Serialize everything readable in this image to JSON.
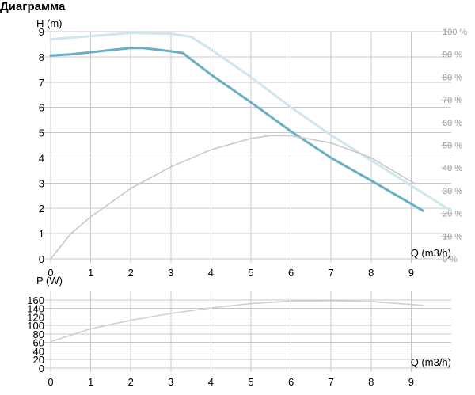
{
  "title": "Диаграмма",
  "colors": {
    "grid": "#c8c8c8",
    "head_curve": "#6aaec6",
    "head_curve_faded": "#cfe6ef",
    "efficiency_curve": "#c8c8c8",
    "power_curve": "#d0d0d0",
    "right_axis_text": "#9a9a9a"
  },
  "chart_data": [
    {
      "type": "line",
      "ylabel": "H (m)",
      "xlabel": "Q (m3/h)",
      "xlim": [
        0,
        10
      ],
      "ylim": [
        0,
        9
      ],
      "x_ticks": [
        0,
        1,
        2,
        3,
        4,
        5,
        6,
        7,
        8,
        9
      ],
      "y_ticks": [
        0,
        1,
        2,
        3,
        4,
        5,
        6,
        7,
        8,
        9
      ],
      "y2lim": [
        0,
        100
      ],
      "y2_ticks": [
        "0 %",
        "10 %",
        "20 %",
        "30 %",
        "40 %",
        "50 %",
        "60 %",
        "70 %",
        "80 %",
        "90 %",
        "100 %"
      ],
      "grid": true,
      "series": [
        {
          "key": "head",
          "axis": "left",
          "color": "#6aaec6",
          "x": [
            0,
            0.5,
            1,
            1.5,
            2,
            2.3,
            2.7,
            3,
            3.3,
            4,
            5,
            6,
            7,
            8,
            9.3
          ],
          "y": [
            8.05,
            8.1,
            8.18,
            8.27,
            8.35,
            8.35,
            8.28,
            8.22,
            8.15,
            7.3,
            6.2,
            5.05,
            4.0,
            3.1,
            1.9
          ]
        },
        {
          "key": "head_max",
          "axis": "left",
          "color": "#cfe6ef",
          "x": [
            0,
            1,
            2,
            3,
            3.5,
            4,
            5,
            6,
            7,
            8,
            9,
            10
          ],
          "y": [
            8.7,
            8.82,
            8.95,
            8.92,
            8.8,
            8.3,
            7.2,
            6.0,
            4.9,
            3.9,
            2.9,
            1.9
          ]
        },
        {
          "key": "efficiency",
          "axis": "right",
          "color": "#c8c8c8",
          "x": [
            0,
            0.5,
            1,
            2,
            3,
            4,
            5,
            5.5,
            6,
            7,
            8,
            9.1
          ],
          "y": [
            0,
            11,
            18.5,
            31,
            40.5,
            48,
            53,
            54.3,
            54.2,
            51,
            44.5,
            33
          ]
        }
      ]
    },
    {
      "type": "line",
      "ylabel": "P (W)",
      "xlabel": "Q (m3/h)",
      "xlim": [
        0,
        10
      ],
      "ylim": [
        0,
        180
      ],
      "x_ticks": [
        0,
        1,
        2,
        3,
        4,
        5,
        6,
        7,
        8,
        9
      ],
      "y_ticks": [
        0,
        20,
        40,
        60,
        80,
        100,
        120,
        140,
        160
      ],
      "grid": true,
      "series": [
        {
          "key": "power",
          "color": "#d0d0d0",
          "x": [
            0,
            1,
            2,
            3,
            4,
            5,
            6,
            7,
            8,
            9.3
          ],
          "y": [
            62,
            92,
            112,
            128,
            141,
            151,
            157,
            158,
            156,
            147
          ]
        }
      ]
    }
  ]
}
